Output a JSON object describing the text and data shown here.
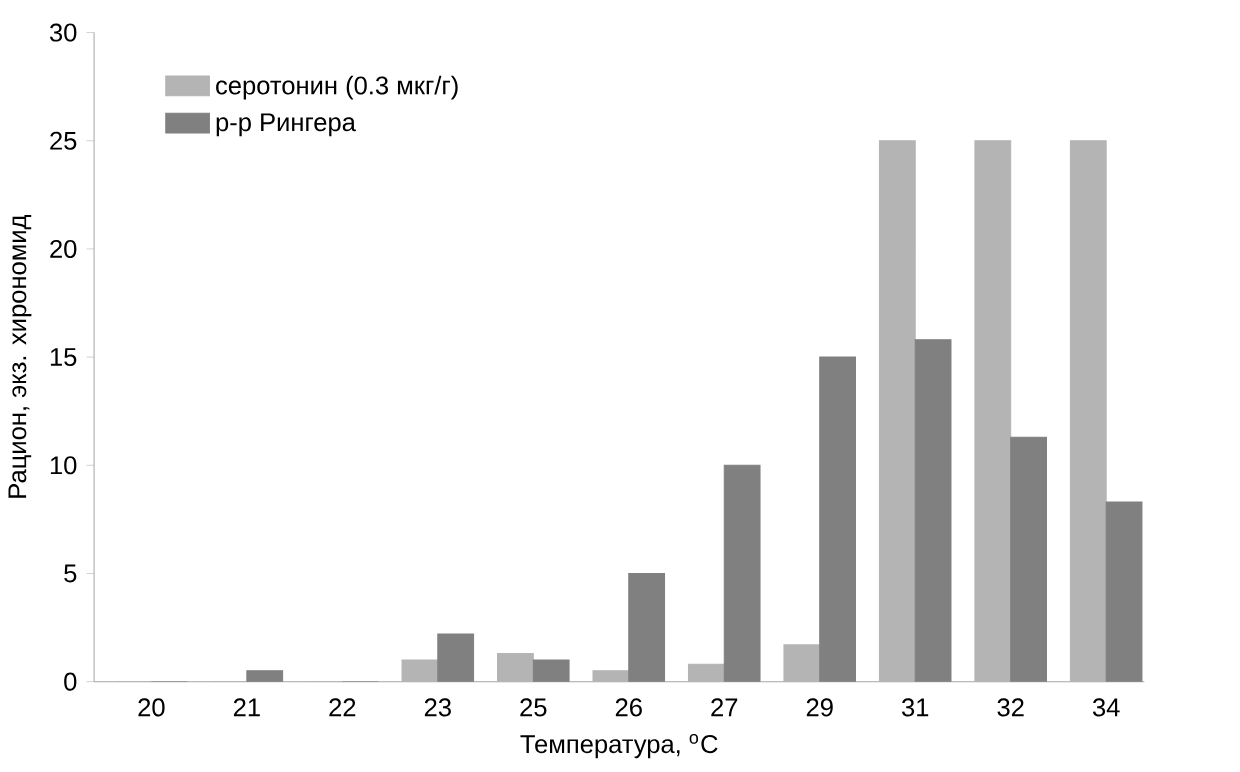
{
  "chart_data": {
    "type": "bar",
    "xlabel": "Температура, $^{o}$C",
    "ylabel": "Рацион, экз. хирономид",
    "categories": [
      "20",
      "21",
      "22",
      "23",
      "25",
      "26",
      "27",
      "29",
      "31",
      "32",
      "34"
    ],
    "series": [
      {
        "name": "серотонин (0.3 мкг/г)",
        "color": "#b4b4b4",
        "values": [
          0,
          0,
          0,
          1,
          1.3,
          0.5,
          0.8,
          1.7,
          25,
          25,
          25
        ]
      },
      {
        "name": "р-р Рингера",
        "color": "#808080",
        "values": [
          0,
          0.5,
          0,
          2.2,
          1,
          5,
          10,
          15,
          15.8,
          11.3,
          8.3
        ]
      }
    ],
    "ylim": [
      0,
      30
    ],
    "yticks": [
      0,
      5,
      10,
      15,
      20,
      25,
      30
    ],
    "legend": "top left"
  }
}
